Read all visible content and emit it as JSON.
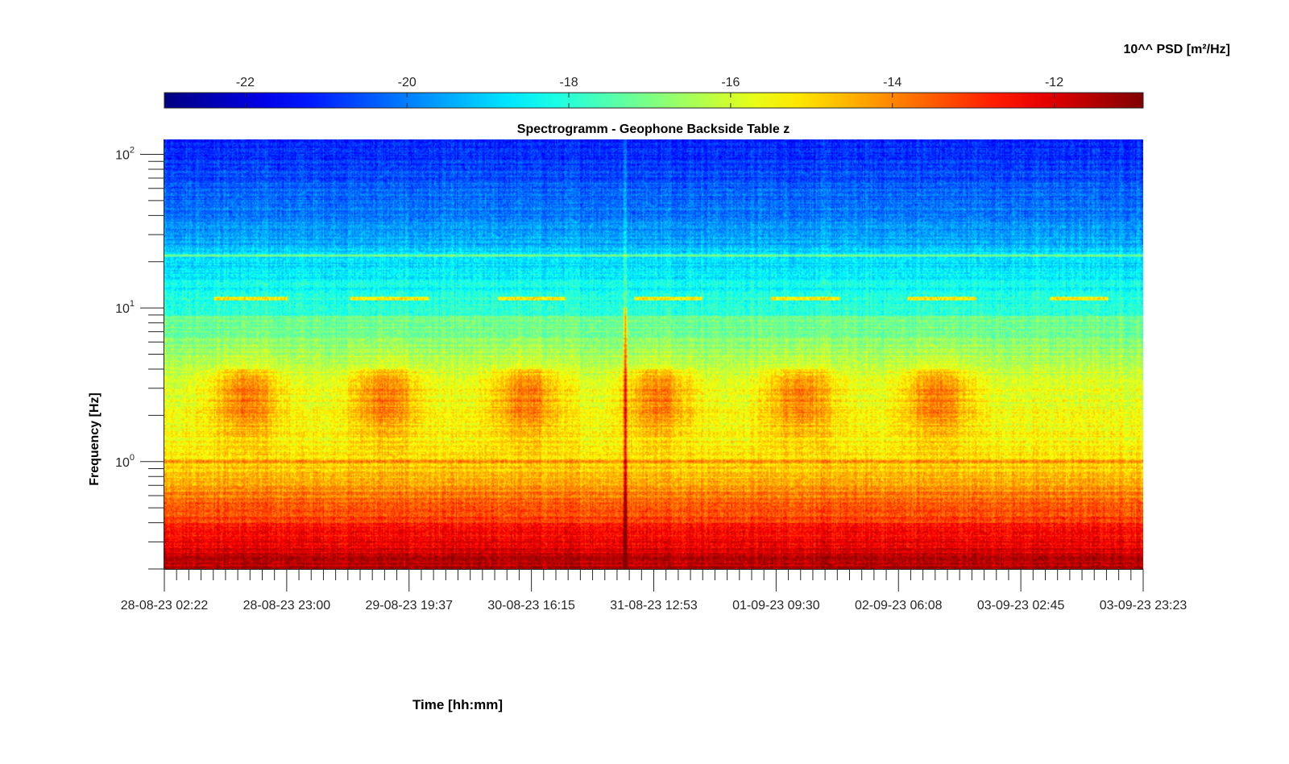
{
  "chart_data": {
    "type": "heatmap",
    "title": "Spectrogramm - Geophone Backside Table z",
    "xlabel": "Time [hh:mm]",
    "ylabel": "Frequency [Hz]",
    "colorbar_label": "10^^ PSD [m²/Hz]",
    "colorbar_range": [
      -23,
      -10.9
    ],
    "colorbar_ticks": [
      "-22",
      "-20",
      "-18",
      "-16",
      "-14",
      "-12"
    ],
    "colorbar_tick_values": [
      -22,
      -20,
      -18,
      -16,
      -14,
      -12
    ],
    "y_scale": "log",
    "ylim": [
      0.2,
      125
    ],
    "y_ticks": [
      {
        "base": "10",
        "exp": "0",
        "value": 1
      },
      {
        "base": "10",
        "exp": "1",
        "value": 10
      },
      {
        "base": "10",
        "exp": "2",
        "value": 100
      }
    ],
    "x_tick_labels": [
      "28-08-23 02:22",
      "28-08-23 23:00",
      "29-08-23 19:37",
      "30-08-23 16:15",
      "31-08-23 12:53",
      "01-09-23 09:30",
      "02-09-23 06:08",
      "03-09-23 02:45",
      "03-09-23 23:23"
    ],
    "x_minor_ticks_per_major": 10,
    "colormap": "jet",
    "colormap_stops": [
      "#00008f",
      "#0000ff",
      "#00ffff",
      "#ffff00",
      "#ff0000",
      "#800000"
    ],
    "features": {
      "daily_activity_bands_hz": [
        2,
        5
      ],
      "persistent_line_hz": 1.0,
      "line_hz": 11.5,
      "line_hz_2": 22,
      "spike_time_label": "31-08-23 12:53"
    }
  }
}
